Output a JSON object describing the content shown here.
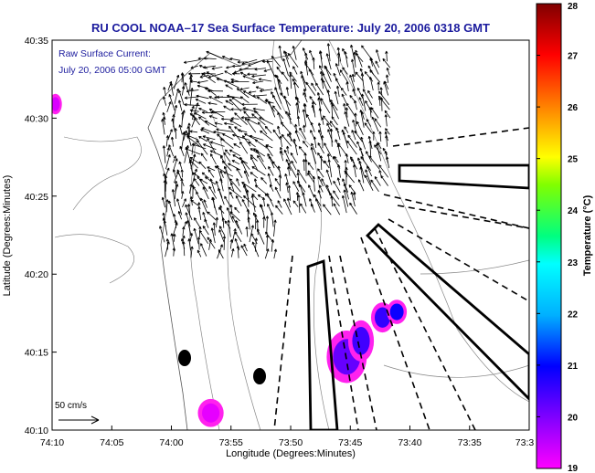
{
  "chart_data": {
    "type": "heatmap",
    "title": "RU COOL  NOAA–17  Sea Surface Temperature:  July 20, 2006 0318 GMT",
    "annotations": [
      "Raw Surface Current:",
      "July 20, 2006 05:00 GMT"
    ],
    "scale_label": "50 cm/s",
    "xlabel": "Longitude (Degrees:Minutes)",
    "ylabel": "Latitude (Degrees:Minutes)",
    "xlim": [
      -74.1667,
      -73.5
    ],
    "ylim": [
      40.1667,
      40.5833
    ],
    "x_ticks": [
      {
        "v": -74.1667,
        "label": "74:10"
      },
      {
        "v": -74.0833,
        "label": "74:05"
      },
      {
        "v": -74.0,
        "label": "74:00"
      },
      {
        "v": -73.9167,
        "label": "73:55"
      },
      {
        "v": -73.8333,
        "label": "73:50"
      },
      {
        "v": -73.75,
        "label": "73:45"
      },
      {
        "v": -73.6667,
        "label": "73:40"
      },
      {
        "v": -73.5833,
        "label": "73:35"
      },
      {
        "v": -73.5,
        "label": "73:3"
      }
    ],
    "y_ticks": [
      {
        "v": 40.1667,
        "label": "40:10"
      },
      {
        "v": 40.25,
        "label": "40:15"
      },
      {
        "v": 40.3333,
        "label": "40:20"
      },
      {
        "v": 40.4167,
        "label": "40:25"
      },
      {
        "v": 40.5,
        "label": "40:30"
      },
      {
        "v": 40.5833,
        "label": "40:35"
      }
    ],
    "colorbar": {
      "label": "Temperature (°C)",
      "min": 19,
      "max": 28,
      "ticks": [
        19,
        20,
        21,
        22,
        23,
        24,
        25,
        26,
        27,
        28
      ],
      "tick_labels": [
        "19",
        "20",
        "21",
        "22",
        "23",
        "24",
        "25",
        "26",
        "27",
        "28"
      ]
    },
    "sst_patches": [
      {
        "lon": -73.755,
        "lat": 40.245,
        "rlon": 0.028,
        "rlat": 0.028,
        "temp": 20.2
      },
      {
        "lon": -73.735,
        "lat": 40.262,
        "rlon": 0.018,
        "rlat": 0.022,
        "temp": 20.5
      },
      {
        "lon": -73.705,
        "lat": 40.287,
        "rlon": 0.016,
        "rlat": 0.016,
        "temp": 20.6
      },
      {
        "lon": -73.685,
        "lat": 40.293,
        "rlon": 0.014,
        "rlat": 0.013,
        "temp": 20.9
      },
      {
        "lon": -73.945,
        "lat": 40.185,
        "rlon": 0.018,
        "rlat": 0.015,
        "temp": 19.2
      },
      {
        "lon": -74.162,
        "lat": 40.515,
        "rlon": 0.009,
        "rlat": 0.011,
        "temp": 19.3
      }
    ]
  }
}
